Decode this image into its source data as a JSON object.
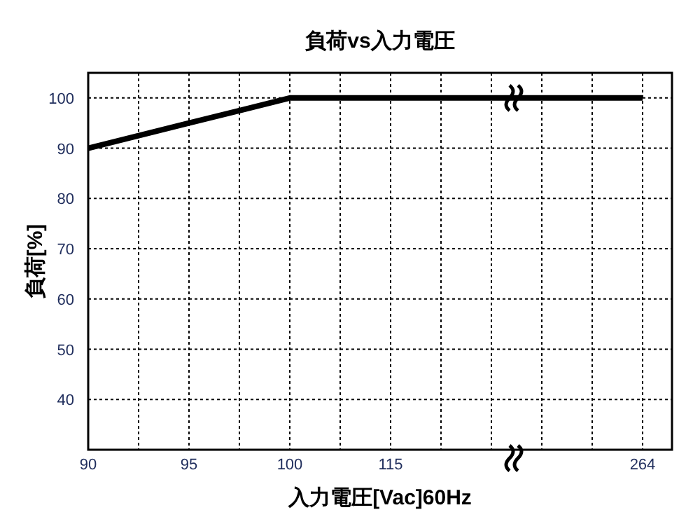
{
  "chart_data": {
    "type": "line",
    "title": "負荷vs入力電圧",
    "xlabel": "入力電圧[Vac]60Hz",
    "ylabel": "負荷[%]",
    "categories": [
      "90",
      null,
      "95",
      null,
      "100",
      null,
      "115",
      null,
      null,
      null,
      null,
      "264"
    ],
    "series": [
      {
        "color": "#000000",
        "values": [
          90,
          92.5,
          95,
          97.5,
          100,
          100,
          100,
          100,
          100,
          100,
          100,
          100
        ]
      }
    ],
    "ylim": [
      30,
      105
    ],
    "yticks": [
      40,
      50,
      60,
      70,
      80,
      90,
      100
    ],
    "grid": true
  }
}
